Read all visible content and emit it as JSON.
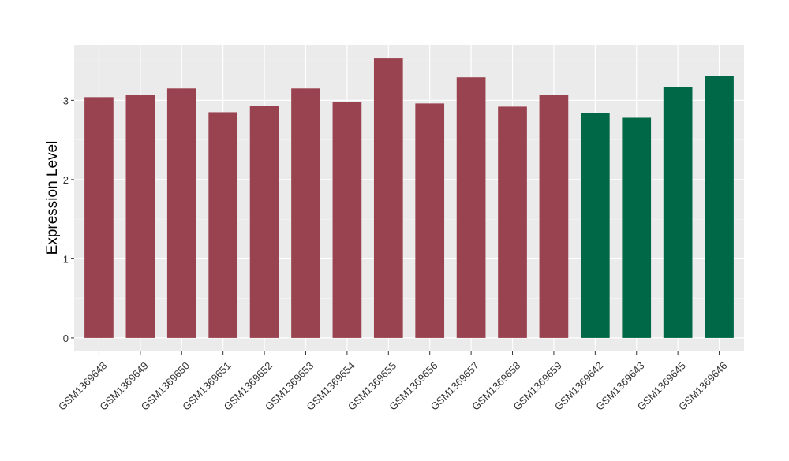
{
  "chart_data": {
    "type": "bar",
    "title": "",
    "xlabel": "",
    "ylabel": "Expression Level",
    "ylim": [
      -0.17,
      3.7
    ],
    "yticks": [
      0,
      1,
      2,
      3
    ],
    "grid": true,
    "legend": "none",
    "background": "#EBEBEB",
    "gridline_color": "#FFFFFF",
    "categories": [
      "GSM1369648",
      "GSM1369649",
      "GSM1369650",
      "GSM1369651",
      "GSM1369652",
      "GSM1369653",
      "GSM1369654",
      "GSM1369655",
      "GSM1369656",
      "GSM1369657",
      "GSM1369658",
      "GSM1369659",
      "GSM1369642",
      "GSM1369643",
      "GSM1369645",
      "GSM1369646"
    ],
    "values": [
      3.04,
      3.07,
      3.15,
      2.85,
      2.93,
      3.15,
      2.98,
      3.53,
      2.96,
      3.29,
      2.92,
      3.07,
      2.84,
      2.78,
      3.17,
      3.31
    ],
    "colors": [
      "#9A4350",
      "#9A4350",
      "#9A4350",
      "#9A4350",
      "#9A4350",
      "#9A4350",
      "#9A4350",
      "#9A4350",
      "#9A4350",
      "#9A4350",
      "#9A4350",
      "#9A4350",
      "#006847",
      "#006847",
      "#006847",
      "#006847"
    ]
  }
}
